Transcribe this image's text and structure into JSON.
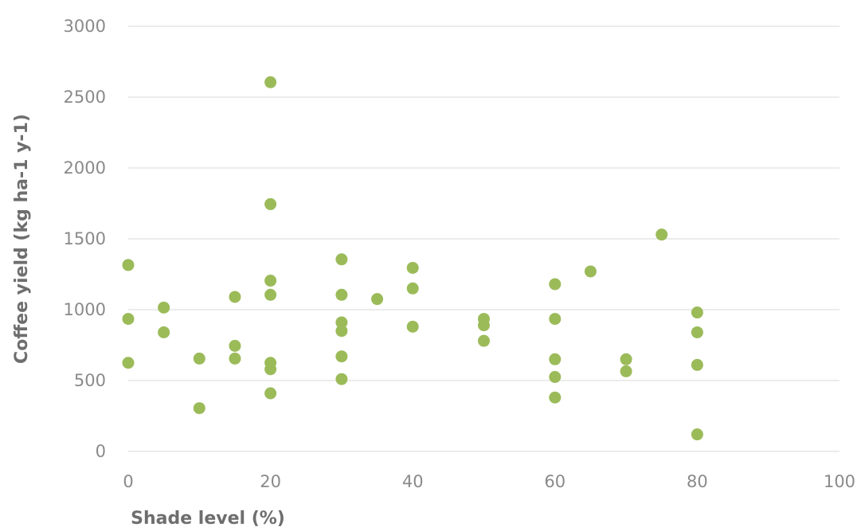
{
  "chart_data": {
    "type": "scatter",
    "xlabel": "Shade level (%)",
    "ylabel": "Coffee yield (kg ha-1 y-1)",
    "xlim": [
      0,
      100
    ],
    "ylim": [
      0,
      3000
    ],
    "x_ticks": [
      "0",
      "20",
      "40",
      "60",
      "80",
      "100"
    ],
    "y_ticks": [
      "0",
      "500",
      "1000",
      "1500",
      "2000",
      "2500",
      "3000"
    ],
    "grid": "horizontal",
    "marker_color": "#9bbb59",
    "series": [
      {
        "points": [
          {
            "x": 0,
            "y": 1315
          },
          {
            "x": 0,
            "y": 935
          },
          {
            "x": 0,
            "y": 625
          },
          {
            "x": 5,
            "y": 1015
          },
          {
            "x": 5,
            "y": 840
          },
          {
            "x": 10,
            "y": 655
          },
          {
            "x": 10,
            "y": 305
          },
          {
            "x": 15,
            "y": 1090
          },
          {
            "x": 15,
            "y": 745
          },
          {
            "x": 15,
            "y": 655
          },
          {
            "x": 20,
            "y": 2605
          },
          {
            "x": 20,
            "y": 1745
          },
          {
            "x": 20,
            "y": 1205
          },
          {
            "x": 20,
            "y": 1105
          },
          {
            "x": 20,
            "y": 625
          },
          {
            "x": 20,
            "y": 580
          },
          {
            "x": 20,
            "y": 410
          },
          {
            "x": 30,
            "y": 1355
          },
          {
            "x": 30,
            "y": 1105
          },
          {
            "x": 30,
            "y": 910
          },
          {
            "x": 30,
            "y": 850
          },
          {
            "x": 30,
            "y": 670
          },
          {
            "x": 30,
            "y": 510
          },
          {
            "x": 35,
            "y": 1075
          },
          {
            "x": 40,
            "y": 1295
          },
          {
            "x": 40,
            "y": 1150
          },
          {
            "x": 40,
            "y": 880
          },
          {
            "x": 50,
            "y": 935
          },
          {
            "x": 50,
            "y": 890
          },
          {
            "x": 50,
            "y": 780
          },
          {
            "x": 60,
            "y": 1180
          },
          {
            "x": 60,
            "y": 935
          },
          {
            "x": 60,
            "y": 650
          },
          {
            "x": 60,
            "y": 525
          },
          {
            "x": 60,
            "y": 380
          },
          {
            "x": 65,
            "y": 1270
          },
          {
            "x": 70,
            "y": 650
          },
          {
            "x": 70,
            "y": 565
          },
          {
            "x": 75,
            "y": 1530
          },
          {
            "x": 80,
            "y": 980
          },
          {
            "x": 80,
            "y": 840
          },
          {
            "x": 80,
            "y": 610
          },
          {
            "x": 80,
            "y": 120
          }
        ]
      }
    ]
  }
}
